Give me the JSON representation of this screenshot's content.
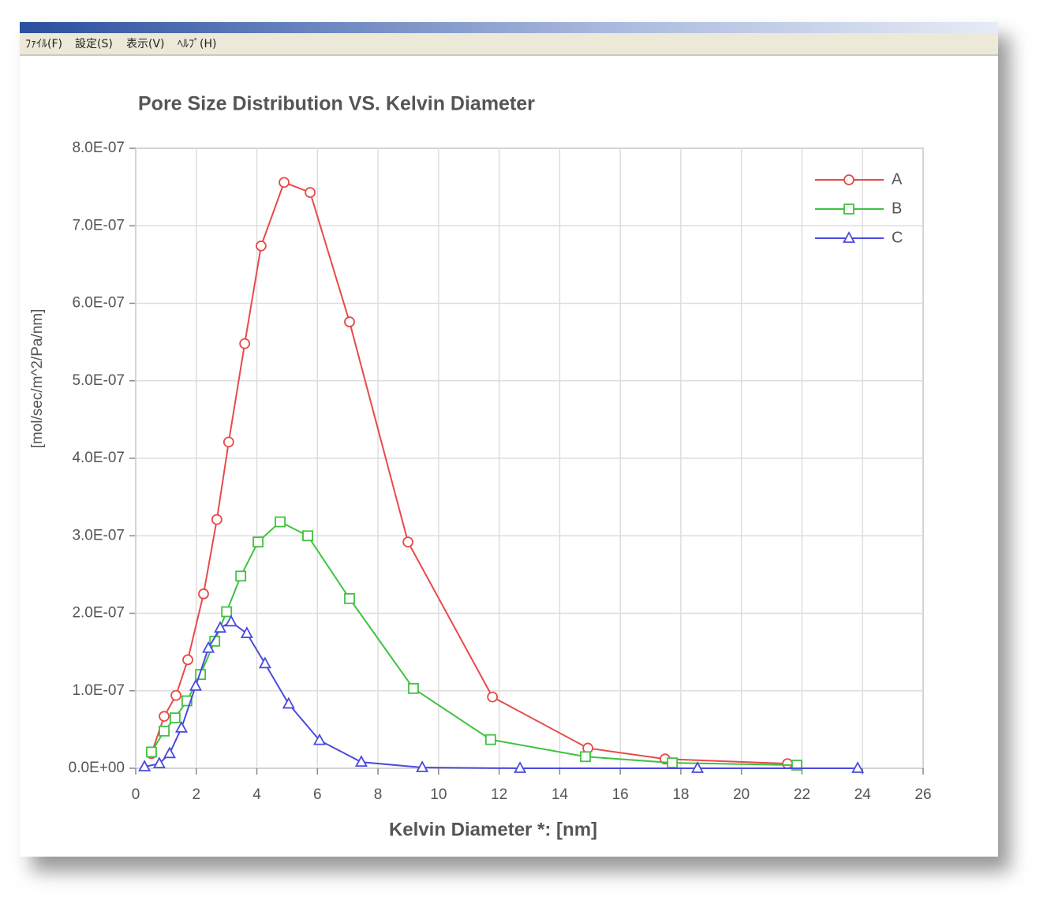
{
  "window": {
    "menu": [
      "ﾌｧｲﾙ(F)",
      "設定(S)",
      "表示(V)",
      "ﾍﾙﾌﾟ(H)"
    ]
  },
  "chart_data": {
    "type": "line",
    "title": "Pore Size Distribution VS. Kelvin Diameter",
    "x_label": "Kelvin Diameter *: [nm]",
    "y_label": "[mol/sec/m^2/Pa/nm]",
    "xlim": [
      0,
      26
    ],
    "xticks": [
      0,
      2,
      4,
      6,
      8,
      10,
      12,
      14,
      16,
      18,
      20,
      22,
      24,
      26
    ],
    "ylim": [
      0,
      8e-07
    ],
    "yticks": [
      {
        "value": 0,
        "label": "0.0E+00"
      },
      {
        "value": 1e-07,
        "label": "1.0E-07"
      },
      {
        "value": 2e-07,
        "label": "2.0E-07"
      },
      {
        "value": 3e-07,
        "label": "3.0E-07"
      },
      {
        "value": 4e-07,
        "label": "4.0E-07"
      },
      {
        "value": 5e-07,
        "label": "5.0E-07"
      },
      {
        "value": 6e-07,
        "label": "6.0E-07"
      },
      {
        "value": 7e-07,
        "label": "7.0E-07"
      },
      {
        "value": 8e-07,
        "label": "8.0E-07"
      }
    ],
    "grid": true,
    "legend": "upper right",
    "series": [
      {
        "name": "A",
        "color": "#e84a4a",
        "marker": "circle",
        "x": [
          0.52,
          0.94,
          1.33,
          1.72,
          2.24,
          2.68,
          3.07,
          3.6,
          4.14,
          4.9,
          5.76,
          7.06,
          8.99,
          11.78,
          14.93,
          17.48,
          21.52
        ],
        "values": [
          1.9e-08,
          6.7e-08,
          9.4e-08,
          1.4e-07,
          2.25e-07,
          3.21e-07,
          4.21e-07,
          5.48e-07,
          6.74e-07,
          7.56e-07,
          7.43e-07,
          5.76e-07,
          2.92e-07,
          9.2e-08,
          2.6e-08,
          1.2e-08,
          6e-09
        ]
      },
      {
        "name": "B",
        "color": "#3fc23f",
        "marker": "square",
        "x": [
          0.52,
          0.94,
          1.3,
          1.69,
          2.14,
          2.61,
          3.0,
          3.47,
          4.04,
          4.77,
          5.68,
          7.06,
          9.17,
          11.72,
          14.85,
          17.72,
          21.83
        ],
        "values": [
          2.1e-08,
          4.8e-08,
          6.5e-08,
          8.7e-08,
          1.21e-07,
          1.64e-07,
          2.02e-07,
          2.48e-07,
          2.92e-07,
          3.18e-07,
          3e-07,
          2.19e-07,
          1.03e-07,
          3.7e-08,
          1.5e-08,
          7e-09,
          4e-09
        ]
      },
      {
        "name": "C",
        "color": "#4a4ae0",
        "marker": "triangle",
        "x": [
          0.29,
          0.78,
          1.12,
          1.51,
          1.98,
          2.4,
          2.79,
          3.15,
          3.67,
          4.27,
          5.05,
          6.07,
          7.45,
          9.46,
          12.69,
          18.55,
          23.84
        ],
        "values": [
          2e-09,
          6e-09,
          1.9e-08,
          5.2e-08,
          1.06e-07,
          1.55e-07,
          1.81e-07,
          1.89e-07,
          1.74e-07,
          1.35e-07,
          8.3e-08,
          3.6e-08,
          8e-09,
          1e-09,
          0,
          0,
          0
        ]
      }
    ]
  }
}
